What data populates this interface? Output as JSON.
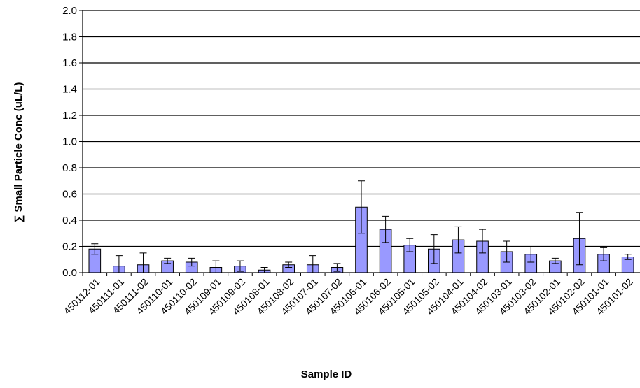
{
  "chart_data": {
    "type": "bar",
    "title": "",
    "xlabel": "Sample ID",
    "ylabel": "∑ Small Particle Conc  (uL/L)",
    "ylim": [
      0,
      2.0
    ],
    "y_ticks": [
      "0.0",
      "0.2",
      "0.4",
      "0.6",
      "0.8",
      "1.0",
      "1.2",
      "1.4",
      "1.6",
      "1.8",
      "2.0"
    ],
    "grid": true,
    "legend": "none",
    "bar_color": "#9999ff",
    "categories": [
      "450112-01",
      "450111-01",
      "450111-02",
      "450110-01",
      "450110-02",
      "450109-01",
      "450109-02",
      "450108-01",
      "450108-02",
      "450107-01",
      "450107-02",
      "450106-01",
      "450106-02",
      "450105-01",
      "450105-02",
      "450104-01",
      "450104-02",
      "450103-01",
      "450103-02",
      "450102-01",
      "450102-02",
      "450101-01",
      "450101-02"
    ],
    "values": [
      0.18,
      0.05,
      0.06,
      0.09,
      0.08,
      0.04,
      0.05,
      0.02,
      0.06,
      0.06,
      0.04,
      0.5,
      0.33,
      0.21,
      0.18,
      0.25,
      0.24,
      0.16,
      0.14,
      0.09,
      0.26,
      0.14,
      0.12
    ],
    "error_bars": [
      0.04,
      0.08,
      0.09,
      0.02,
      0.03,
      0.05,
      0.04,
      0.02,
      0.02,
      0.07,
      0.03,
      0.2,
      0.1,
      0.05,
      0.11,
      0.1,
      0.09,
      0.08,
      0.06,
      0.02,
      0.2,
      0.05,
      0.02
    ]
  }
}
